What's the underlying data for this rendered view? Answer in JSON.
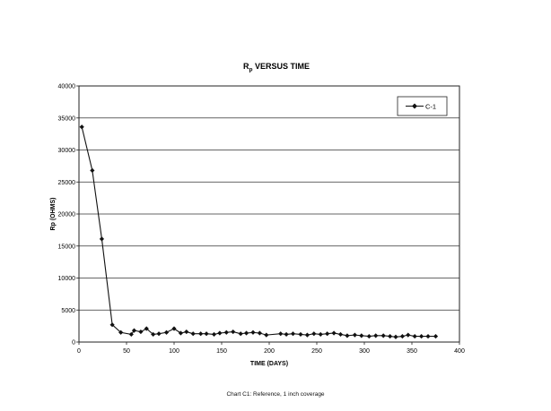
{
  "chart_data": {
    "type": "line",
    "title_main": "R",
    "title_sub": "p",
    "title_rest": " VERSUS TIME",
    "xlabel": "TIME (DAYS)",
    "ylabel_main": "Rp",
    "ylabel_rest": " (OHMS)",
    "xlim": [
      0,
      400
    ],
    "ylim": [
      0,
      40000
    ],
    "xticks": [
      0,
      50,
      100,
      150,
      200,
      250,
      300,
      350,
      400
    ],
    "yticks": [
      0,
      5000,
      10000,
      15000,
      20000,
      25000,
      30000,
      35000,
      40000
    ],
    "grid": "horizontal",
    "legend_position": "top-right",
    "series": [
      {
        "name": "C-1",
        "color": "#111111",
        "marker": "diamond",
        "points": [
          [
            3,
            33600
          ],
          [
            14,
            26800
          ],
          [
            24,
            16100
          ],
          [
            35,
            2700
          ],
          [
            44,
            1500
          ],
          [
            55,
            1200
          ],
          [
            58,
            1800
          ],
          [
            65,
            1600
          ],
          [
            71,
            2100
          ],
          [
            78,
            1200
          ],
          [
            84,
            1300
          ],
          [
            92,
            1500
          ],
          [
            100,
            2100
          ],
          [
            107,
            1400
          ],
          [
            113,
            1600
          ],
          [
            120,
            1300
          ],
          [
            128,
            1300
          ],
          [
            134,
            1300
          ],
          [
            142,
            1200
          ],
          [
            148,
            1400
          ],
          [
            155,
            1500
          ],
          [
            162,
            1600
          ],
          [
            170,
            1300
          ],
          [
            176,
            1400
          ],
          [
            183,
            1500
          ],
          [
            190,
            1400
          ],
          [
            197,
            1100
          ],
          [
            212,
            1300
          ],
          [
            218,
            1200
          ],
          [
            225,
            1300
          ],
          [
            233,
            1200
          ],
          [
            240,
            1100
          ],
          [
            247,
            1300
          ],
          [
            254,
            1200
          ],
          [
            261,
            1300
          ],
          [
            268,
            1400
          ],
          [
            275,
            1200
          ],
          [
            282,
            1000
          ],
          [
            290,
            1100
          ],
          [
            297,
            1000
          ],
          [
            305,
            900
          ],
          [
            312,
            1000
          ],
          [
            320,
            1000
          ],
          [
            327,
            900
          ],
          [
            333,
            800
          ],
          [
            340,
            900
          ],
          [
            346,
            1100
          ],
          [
            353,
            900
          ],
          [
            360,
            900
          ],
          [
            367,
            900
          ],
          [
            375,
            900
          ]
        ]
      }
    ]
  },
  "caption": "Chart C1: Reference, 1 inch coverage"
}
